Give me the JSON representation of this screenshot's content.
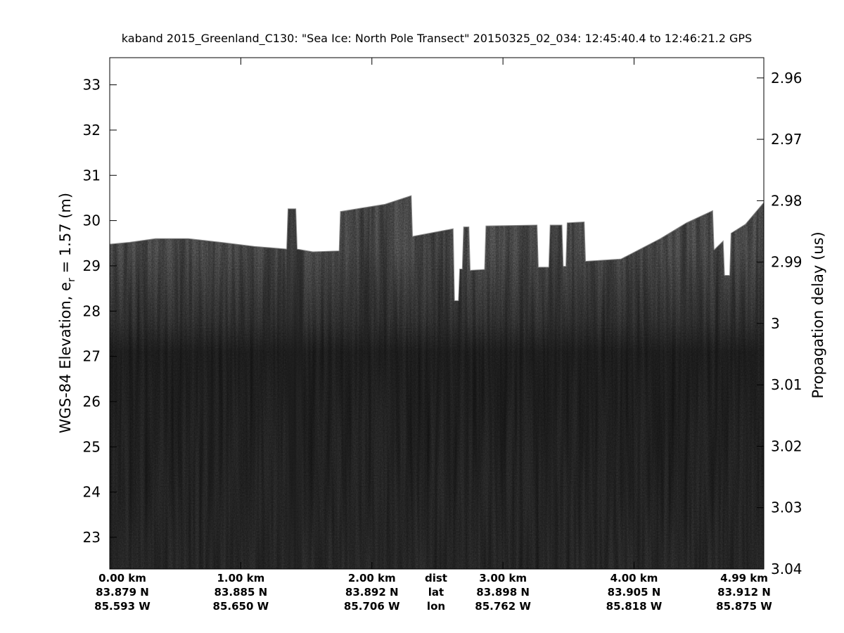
{
  "chart_data": {
    "type": "heatmap",
    "title": "kaband 2015_Greenland_C130: \"Sea Ice: North Pole Transect\"  20150325_02_034: 12:45:40.4 to 12:46:21.2 GPS",
    "ylabel_left": {
      "main": "WGS-84 Elevation, e",
      "sub": "r",
      "tail": " = 1.57 (m)"
    },
    "ylabel_right": "Propagation delay (us)",
    "colormap": "gray",
    "grid": false,
    "xlim_km": [
      0,
      4.99
    ],
    "ylim_left": [
      22.3,
      33.6
    ],
    "yticks_left": [
      23,
      24,
      25,
      26,
      27,
      28,
      29,
      30,
      31,
      32,
      33
    ],
    "ylim_right": [
      2.9567,
      3.04
    ],
    "yticks_right": [
      "2.96",
      "2.97",
      "2.98",
      "2.99",
      "3",
      "3.01",
      "3.02",
      "3.03",
      "3.04"
    ],
    "yticks_right_values": [
      2.96,
      2.97,
      2.98,
      2.99,
      3.0,
      3.01,
      3.02,
      3.03,
      3.04
    ],
    "xtick_positions_km": [
      0,
      1,
      2,
      3,
      4,
      4.99
    ],
    "xticks": [
      {
        "dist": "0.00 km",
        "lat": "83.879 N",
        "lon": "85.593 W"
      },
      {
        "dist": "1.00 km",
        "lat": "83.885 N",
        "lon": "85.650 W"
      },
      {
        "dist": "2.00 km",
        "lat": "83.892 N",
        "lon": "85.706 W"
      },
      {
        "dist": "3.00 km",
        "lat": "83.898 N",
        "lon": "85.762 W"
      },
      {
        "dist": "4.00 km",
        "lat": "83.905 N",
        "lon": "85.818 W"
      },
      {
        "dist": "4.99 km",
        "lat": "83.912 N",
        "lon": "85.875 W"
      }
    ],
    "xrow_labels": {
      "dist": "dist",
      "lat": "lat",
      "lon": "lon"
    },
    "surface_profile_m": [
      [
        0.0,
        29.48
      ],
      [
        0.15,
        29.52
      ],
      [
        0.35,
        29.6
      ],
      [
        0.6,
        29.6
      ],
      [
        0.85,
        29.52
      ],
      [
        1.1,
        29.43
      ],
      [
        1.35,
        29.37
      ],
      [
        1.36,
        30.26
      ],
      [
        1.42,
        30.26
      ],
      [
        1.43,
        29.37
      ],
      [
        1.55,
        29.31
      ],
      [
        1.75,
        29.33
      ],
      [
        1.76,
        30.2
      ],
      [
        2.1,
        30.36
      ],
      [
        2.3,
        30.55
      ],
      [
        2.31,
        29.65
      ],
      [
        2.62,
        29.82
      ],
      [
        2.63,
        28.23
      ],
      [
        2.66,
        28.23
      ],
      [
        2.67,
        28.93
      ],
      [
        2.69,
        28.93
      ],
      [
        2.7,
        29.86
      ],
      [
        2.74,
        29.86
      ],
      [
        2.75,
        28.9
      ],
      [
        2.86,
        28.92
      ],
      [
        2.87,
        29.88
      ],
      [
        3.26,
        29.9
      ],
      [
        3.27,
        28.97
      ],
      [
        3.35,
        28.97
      ],
      [
        3.36,
        29.9
      ],
      [
        3.45,
        29.9
      ],
      [
        3.46,
        28.99
      ],
      [
        3.48,
        28.99
      ],
      [
        3.49,
        29.95
      ],
      [
        3.62,
        29.97
      ],
      [
        3.63,
        29.1
      ],
      [
        3.9,
        29.15
      ],
      [
        4.2,
        29.6
      ],
      [
        4.4,
        29.95
      ],
      [
        4.6,
        30.22
      ],
      [
        4.61,
        29.35
      ],
      [
        4.68,
        29.55
      ],
      [
        4.69,
        28.79
      ],
      [
        4.73,
        28.79
      ],
      [
        4.74,
        29.72
      ],
      [
        4.85,
        29.92
      ],
      [
        4.99,
        30.4
      ]
    ],
    "bottom_boundary_m": 27.1
  }
}
